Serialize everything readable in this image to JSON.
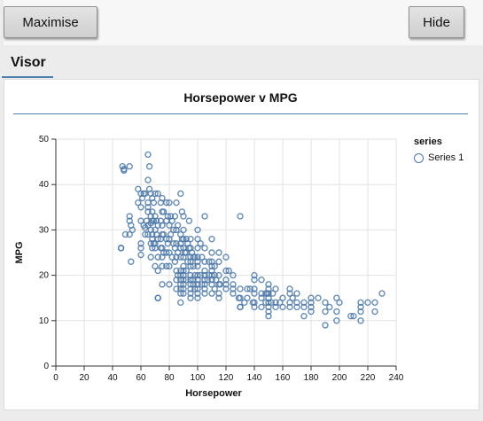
{
  "toolbar": {
    "maximise_label": "Maximise",
    "hide_label": "Hide"
  },
  "tabs": [
    {
      "label": "Visor",
      "active": true
    }
  ],
  "colors": {
    "accent": "#4a7fb0",
    "point": "#4c78a8"
  },
  "chart_data": {
    "type": "scatter",
    "title": "Horsepower v MPG",
    "xlabel": "Horsepower",
    "ylabel": "MPG",
    "xlim": [
      0,
      240
    ],
    "ylim": [
      0,
      50
    ],
    "xticks": [
      0,
      20,
      40,
      60,
      80,
      100,
      120,
      140,
      160,
      180,
      200,
      220,
      240
    ],
    "yticks": [
      0,
      10,
      20,
      30,
      40,
      50
    ],
    "grid": true,
    "legend": {
      "title": "series",
      "position": "right"
    },
    "series": [
      {
        "name": "Series 1",
        "points": [
          [
            46,
            26
          ],
          [
            46,
            26
          ],
          [
            47,
            44
          ],
          [
            48,
            43.4
          ],
          [
            48,
            43.1
          ],
          [
            49,
            29
          ],
          [
            52,
            44
          ],
          [
            52,
            33
          ],
          [
            52,
            32
          ],
          [
            52,
            29
          ],
          [
            53,
            31
          ],
          [
            53,
            23
          ],
          [
            54,
            30
          ],
          [
            58,
            39
          ],
          [
            58,
            36
          ],
          [
            60,
            38
          ],
          [
            60,
            35
          ],
          [
            60,
            32
          ],
          [
            60,
            27
          ],
          [
            60,
            24.5
          ],
          [
            60,
            26
          ],
          [
            61,
            37
          ],
          [
            62,
            38
          ],
          [
            62,
            31
          ],
          [
            63,
            29
          ],
          [
            63,
            30.5
          ],
          [
            63,
            38
          ],
          [
            64,
            32
          ],
          [
            65,
            46.6
          ],
          [
            65,
            41
          ],
          [
            65,
            36
          ],
          [
            65,
            35
          ],
          [
            65,
            34
          ],
          [
            65,
            31
          ],
          [
            65,
            29
          ],
          [
            66,
            44
          ],
          [
            66,
            39
          ],
          [
            67,
            38
          ],
          [
            67,
            33
          ],
          [
            67,
            31.5
          ],
          [
            67,
            30
          ],
          [
            67,
            27
          ],
          [
            67,
            24
          ],
          [
            68,
            37
          ],
          [
            68,
            34
          ],
          [
            68,
            32
          ],
          [
            68,
            29
          ],
          [
            68,
            28
          ],
          [
            68,
            26
          ],
          [
            69,
            36
          ],
          [
            69,
            32
          ],
          [
            69,
            27
          ],
          [
            70,
            38
          ],
          [
            70,
            33
          ],
          [
            70,
            30
          ],
          [
            70,
            27
          ],
          [
            70,
            26
          ],
          [
            70,
            22
          ],
          [
            71,
            32
          ],
          [
            71,
            29
          ],
          [
            72,
            38
          ],
          [
            72,
            31
          ],
          [
            72,
            28
          ],
          [
            72,
            24
          ],
          [
            72,
            21
          ],
          [
            72,
            15
          ],
          [
            72,
            15
          ],
          [
            74,
            36
          ],
          [
            74,
            32
          ],
          [
            74,
            28
          ],
          [
            74,
            26
          ],
          [
            75,
            37
          ],
          [
            75,
            34
          ],
          [
            75,
            31
          ],
          [
            75,
            29
          ],
          [
            75,
            26
          ],
          [
            75,
            24
          ],
          [
            75,
            22
          ],
          [
            75,
            18
          ],
          [
            76,
            34
          ],
          [
            76,
            29
          ],
          [
            76,
            25
          ],
          [
            78,
            36
          ],
          [
            78,
            32
          ],
          [
            78,
            28
          ],
          [
            78,
            25
          ],
          [
            78,
            22
          ],
          [
            79,
            33
          ],
          [
            79,
            27
          ],
          [
            80,
            36
          ],
          [
            80,
            31
          ],
          [
            80,
            28
          ],
          [
            80,
            25
          ],
          [
            80,
            22
          ],
          [
            80,
            18
          ],
          [
            81,
            33
          ],
          [
            81,
            29
          ],
          [
            82,
            32
          ],
          [
            82,
            24
          ],
          [
            83,
            30
          ],
          [
            83,
            27
          ],
          [
            84,
            33
          ],
          [
            84,
            26
          ],
          [
            84,
            23
          ],
          [
            85,
            36
          ],
          [
            85,
            30
          ],
          [
            85,
            27
          ],
          [
            85,
            24
          ],
          [
            85,
            21
          ],
          [
            85,
            19
          ],
          [
            85,
            17
          ],
          [
            86,
            31
          ],
          [
            86,
            25
          ],
          [
            86,
            20
          ],
          [
            88,
            38
          ],
          [
            88,
            29
          ],
          [
            88,
            27
          ],
          [
            88,
            26
          ],
          [
            88,
            24
          ],
          [
            88,
            21
          ],
          [
            88,
            20
          ],
          [
            88,
            19
          ],
          [
            88,
            18
          ],
          [
            88,
            17
          ],
          [
            88,
            16
          ],
          [
            88,
            14
          ],
          [
            89,
            34
          ],
          [
            89,
            28
          ],
          [
            90,
            33
          ],
          [
            90,
            30
          ],
          [
            90,
            28
          ],
          [
            90,
            26
          ],
          [
            90,
            24
          ],
          [
            90,
            22
          ],
          [
            90,
            21
          ],
          [
            90,
            20
          ],
          [
            90,
            19
          ],
          [
            90,
            18
          ],
          [
            90,
            17
          ],
          [
            90,
            16
          ],
          [
            91,
            25
          ],
          [
            92,
            28
          ],
          [
            92,
            25
          ],
          [
            92,
            21
          ],
          [
            92,
            19
          ],
          [
            93,
            27
          ],
          [
            93,
            23
          ],
          [
            94,
            32
          ],
          [
            94,
            26
          ],
          [
            95,
            28
          ],
          [
            95,
            26
          ],
          [
            95,
            24
          ],
          [
            95,
            23
          ],
          [
            95,
            22
          ],
          [
            95,
            20
          ],
          [
            95,
            19
          ],
          [
            95,
            18
          ],
          [
            95,
            17
          ],
          [
            95,
            16
          ],
          [
            95,
            15
          ],
          [
            96,
            25
          ],
          [
            97,
            24
          ],
          [
            97,
            22
          ],
          [
            97,
            19
          ],
          [
            97,
            18
          ],
          [
            98,
            24
          ],
          [
            98,
            20
          ],
          [
            98,
            17
          ],
          [
            100,
            30
          ],
          [
            100,
            28
          ],
          [
            100,
            26
          ],
          [
            100,
            24
          ],
          [
            100,
            23
          ],
          [
            100,
            22
          ],
          [
            100,
            20
          ],
          [
            100,
            19
          ],
          [
            100,
            18
          ],
          [
            100,
            17
          ],
          [
            100,
            16
          ],
          [
            100,
            15
          ],
          [
            102,
            27
          ],
          [
            102,
            20
          ],
          [
            103,
            24
          ],
          [
            103,
            18
          ],
          [
            105,
            33
          ],
          [
            105,
            26
          ],
          [
            105,
            23
          ],
          [
            105,
            21
          ],
          [
            105,
            20
          ],
          [
            105,
            19
          ],
          [
            105,
            18
          ],
          [
            105,
            17
          ],
          [
            105,
            16
          ],
          [
            107,
            19
          ],
          [
            108,
            23
          ],
          [
            108,
            20
          ],
          [
            110,
            28
          ],
          [
            110,
            25
          ],
          [
            110,
            23
          ],
          [
            110,
            22
          ],
          [
            110,
            21
          ],
          [
            110,
            20
          ],
          [
            110,
            19
          ],
          [
            110,
            18
          ],
          [
            110,
            16
          ],
          [
            112,
            22
          ],
          [
            112,
            20
          ],
          [
            112,
            17
          ],
          [
            113,
            19
          ],
          [
            115,
            25
          ],
          [
            115,
            23
          ],
          [
            115,
            20
          ],
          [
            115,
            18
          ],
          [
            115,
            16
          ],
          [
            115,
            15
          ],
          [
            116,
            18
          ],
          [
            120,
            24
          ],
          [
            120,
            21
          ],
          [
            120,
            19
          ],
          [
            120,
            18
          ],
          [
            120,
            17
          ],
          [
            122,
            21
          ],
          [
            125,
            20
          ],
          [
            125,
            18
          ],
          [
            125,
            17
          ],
          [
            125,
            16
          ],
          [
            129,
            15
          ],
          [
            130,
            33
          ],
          [
            130,
            17
          ],
          [
            130,
            15
          ],
          [
            130,
            13
          ],
          [
            130,
            13
          ],
          [
            133,
            14
          ],
          [
            135,
            17
          ],
          [
            135,
            15
          ],
          [
            137,
            17
          ],
          [
            139,
            14
          ],
          [
            140,
            20
          ],
          [
            140,
            19
          ],
          [
            140,
            17
          ],
          [
            140,
            16
          ],
          [
            140,
            14
          ],
          [
            140,
            13
          ],
          [
            145,
            19
          ],
          [
            145,
            16
          ],
          [
            145,
            15
          ],
          [
            145,
            13
          ],
          [
            148,
            16
          ],
          [
            148,
            14
          ],
          [
            149,
            16
          ],
          [
            150,
            18
          ],
          [
            150,
            17
          ],
          [
            150,
            16
          ],
          [
            150,
            15
          ],
          [
            150,
            14
          ],
          [
            150,
            13
          ],
          [
            150,
            12
          ],
          [
            150,
            11
          ],
          [
            152,
            14
          ],
          [
            153,
            16
          ],
          [
            155,
            17
          ],
          [
            155,
            14
          ],
          [
            155,
            13
          ],
          [
            158,
            14
          ],
          [
            160,
            15
          ],
          [
            160,
            13
          ],
          [
            165,
            17
          ],
          [
            165,
            16
          ],
          [
            165,
            14
          ],
          [
            165,
            13
          ],
          [
            167,
            15
          ],
          [
            170,
            16
          ],
          [
            170,
            14
          ],
          [
            170,
            13
          ],
          [
            175,
            14
          ],
          [
            175,
            13
          ],
          [
            175,
            11
          ],
          [
            180,
            15
          ],
          [
            180,
            14
          ],
          [
            180,
            13
          ],
          [
            180,
            12
          ],
          [
            185,
            15
          ],
          [
            190,
            14
          ],
          [
            190,
            12
          ],
          [
            190,
            9
          ],
          [
            193,
            13
          ],
          [
            198,
            15
          ],
          [
            198,
            12
          ],
          [
            198,
            10
          ],
          [
            200,
            14
          ],
          [
            208,
            11
          ],
          [
            210,
            11
          ],
          [
            215,
            14
          ],
          [
            215,
            13
          ],
          [
            215,
            12
          ],
          [
            215,
            10
          ],
          [
            220,
            14
          ],
          [
            225,
            14
          ],
          [
            225,
            12
          ],
          [
            230,
            16
          ]
        ]
      }
    ]
  }
}
